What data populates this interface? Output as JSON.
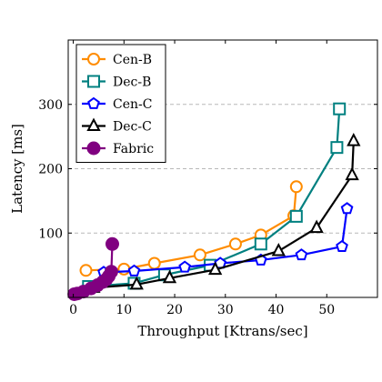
{
  "chart_data": {
    "type": "line",
    "title": "",
    "xlabel": "Throughput [Ktrans/sec]",
    "ylabel": "Latency [ms]",
    "xlim": [
      -1,
      60
    ],
    "ylim": [
      0,
      400
    ],
    "xticks": [
      "0",
      "10",
      "20",
      "30",
      "40",
      "50"
    ],
    "yticks": [
      "100",
      "200",
      "300"
    ],
    "grid": "horizontal dashed",
    "legend_position": "top-left",
    "series": [
      {
        "name": "Cen-B",
        "color": "#ff8c00",
        "marker": "circle-open",
        "x": [
          2.5,
          10,
          16,
          25,
          32,
          37,
          43.5,
          44
        ],
        "y": [
          42,
          44,
          53,
          66,
          83,
          97,
          127,
          172
        ]
      },
      {
        "name": "Dec-B",
        "color": "#008080",
        "marker": "square-open",
        "x": [
          3,
          12,
          18,
          27,
          37,
          44,
          52,
          52.5
        ],
        "y": [
          17,
          22,
          35,
          50,
          83,
          126,
          233,
          293
        ]
      },
      {
        "name": "Cen-C",
        "color": "#0000ff",
        "marker": "pentagon-open",
        "x": [
          6,
          12,
          22,
          29,
          37,
          45,
          53,
          54
        ],
        "y": [
          39,
          41,
          47,
          53,
          58,
          66,
          79,
          138
        ]
      },
      {
        "name": "Dec-C",
        "color": "#000000",
        "marker": "triangle-open",
        "x": [
          4,
          12.5,
          19,
          28,
          40.5,
          48,
          55,
          55.3
        ],
        "y": [
          15,
          20,
          30,
          43,
          72,
          108,
          190,
          243
        ]
      },
      {
        "name": "Fabric",
        "color": "#800080",
        "marker": "circle-filled",
        "x": [
          0.2,
          0.8,
          2,
          3.5,
          4.8,
          5.8,
          6.5,
          7,
          7.5,
          7.7
        ],
        "y": [
          5,
          6,
          9,
          14,
          19,
          24,
          28,
          33,
          40,
          83
        ]
      }
    ]
  }
}
